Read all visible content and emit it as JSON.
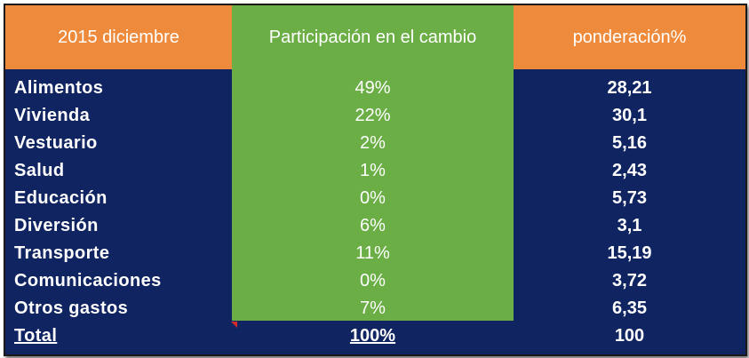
{
  "table": {
    "headers": [
      "2015 diciembre",
      "Participación en el cambio",
      "ponderación%"
    ],
    "rows": [
      {
        "category": "Alimentos",
        "participation": "49%",
        "weight": "28,21"
      },
      {
        "category": "Vivienda",
        "participation": "22%",
        "weight": "30,1"
      },
      {
        "category": "Vestuario",
        "participation": "2%",
        "weight": "5,16"
      },
      {
        "category": "Salud",
        "participation": "1%",
        "weight": "2,43"
      },
      {
        "category": "Educación",
        "participation": "0%",
        "weight": "5,73"
      },
      {
        "category": "Diversión",
        "participation": "6%",
        "weight": "3,1"
      },
      {
        "category": "Transporte",
        "participation": "11%",
        "weight": "15,19"
      },
      {
        "category": "Comunicaciones",
        "participation": "0%",
        "weight": "3,72"
      },
      {
        "category": "Otros gastos",
        "participation": "7%",
        "weight": "6,35"
      }
    ],
    "total": {
      "category": "Total",
      "participation": "100%",
      "weight": "100"
    }
  },
  "colors": {
    "header_bg": "#ee8a3b",
    "body_bg": "#0f2460",
    "participation_bg": "#6aae45",
    "text": "#ffffff"
  }
}
